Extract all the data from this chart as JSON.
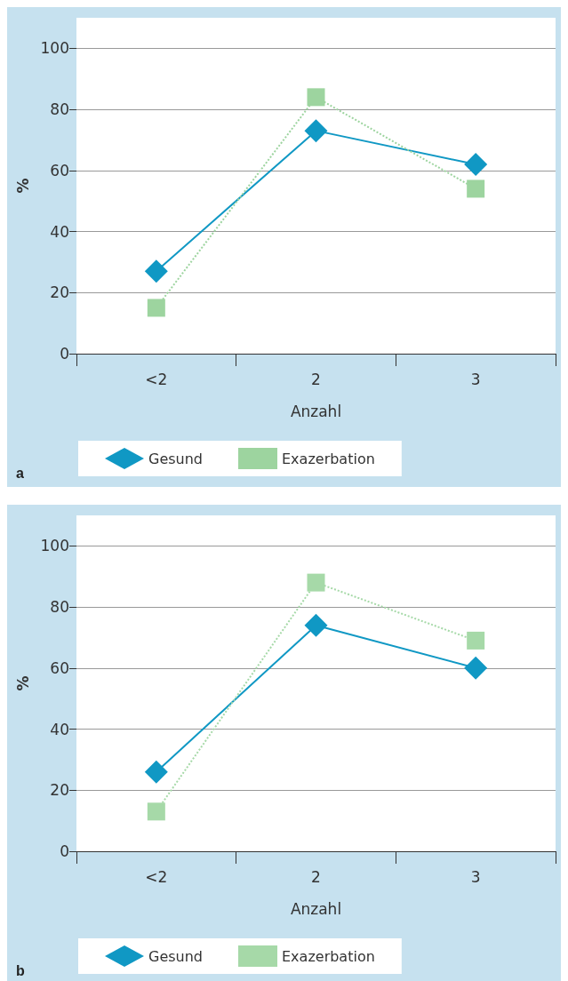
{
  "chart_data": [
    {
      "type": "line",
      "categories": [
        "<2",
        "2",
        "3"
      ],
      "xlabel": "Anzahl",
      "ylabel": "%",
      "ylim": [
        0,
        110
      ],
      "yticks": [
        0,
        20,
        40,
        60,
        80,
        100
      ],
      "grid": "y",
      "legend": "bottom",
      "annotations": [
        "a"
      ],
      "series": [
        {
          "name": "Gesund",
          "color": "#1098c4",
          "values": [
            27,
            73,
            62
          ],
          "marker": "diamond",
          "line_style": "solid"
        },
        {
          "name": "Exazerbation",
          "color": "#9dd49f",
          "values": [
            15,
            84,
            54
          ],
          "marker": "square",
          "line_style": "dotted"
        }
      ]
    },
    {
      "type": "line",
      "categories": [
        "<2",
        "2",
        "3"
      ],
      "xlabel": "Anzahl",
      "ylabel": "%",
      "ylim": [
        0,
        110
      ],
      "yticks": [
        0,
        20,
        40,
        60,
        80,
        100
      ],
      "grid": "y",
      "legend": "bottom",
      "annotations": [
        "b"
      ],
      "series": [
        {
          "name": "Gesund",
          "color": "#1098c4",
          "values": [
            26,
            74,
            60
          ],
          "marker": "diamond",
          "line_style": "solid"
        },
        {
          "name": "Exazerbation",
          "color": "#a6d9a8",
          "values": [
            13,
            88,
            69
          ],
          "marker": "square",
          "line_style": "dotted"
        }
      ]
    }
  ]
}
